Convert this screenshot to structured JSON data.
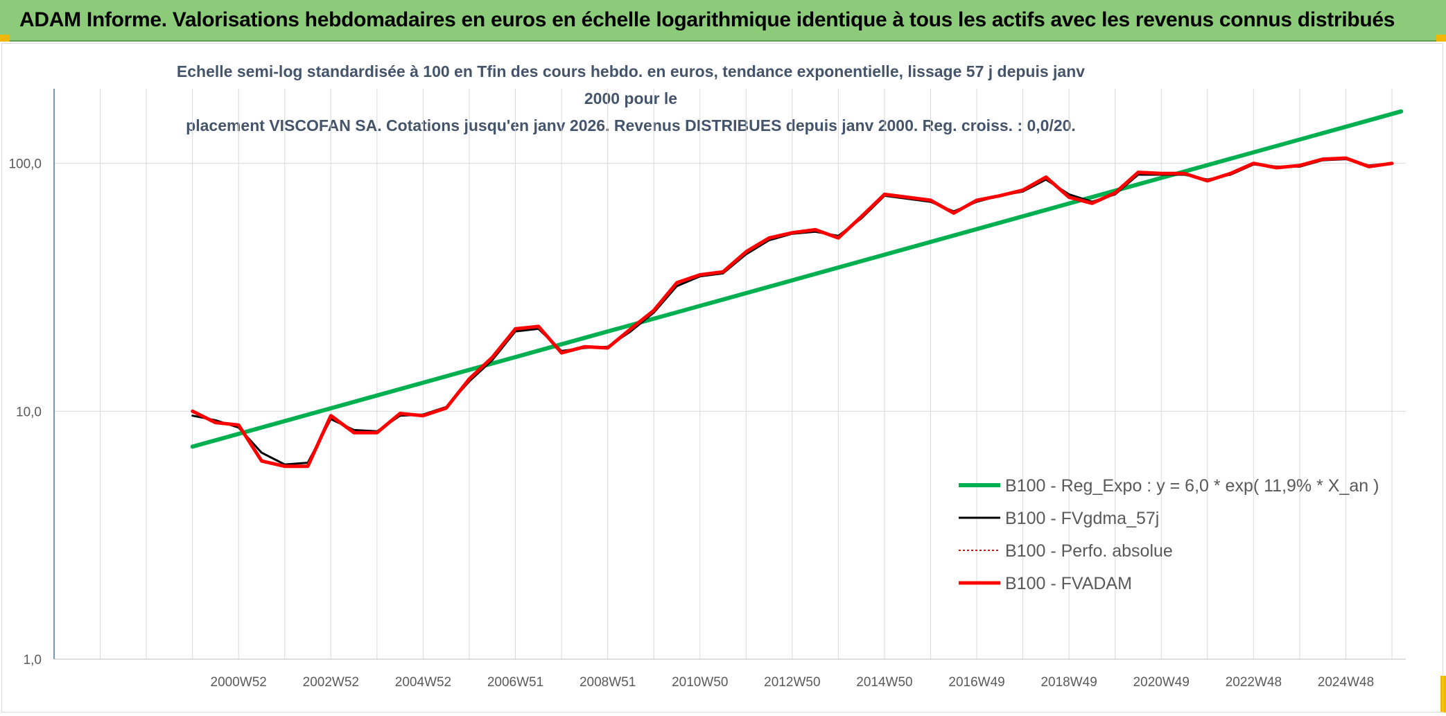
{
  "header": {
    "title": "ADAM Informe. Valorisations hebdomadaires en euros en échelle logarithmique identique à tous les actifs avec les revenus connus distribués",
    "banner_color": "#8ccb7a",
    "corner_color": "#f2b705"
  },
  "chart_data": {
    "type": "line",
    "title_line1": "Echelle semi-log standardisée à 100 en Tfin des cours hebdo. en euros, tendance exponentielle, lissage 57 j depuis janv 2000 pour le",
    "title_line2": "placement VISCOFAN SA. Cotations jusqu'en janv 2026. Revenus DISTRIBUES depuis janv 2000. Reg. croiss. : 0,0/20.",
    "y_scale": "log",
    "ylim": [
      1,
      200
    ],
    "y_ticks": [
      {
        "value": 1,
        "label": "1,0"
      },
      {
        "value": 10,
        "label": "10,0"
      },
      {
        "value": 100,
        "label": "100,0"
      }
    ],
    "x_range": [
      1997.0,
      2026.3
    ],
    "x_ticks": [
      {
        "value": 2001.0,
        "label": "2000W52"
      },
      {
        "value": 2003.0,
        "label": "2002W52"
      },
      {
        "value": 2005.0,
        "label": "2004W52"
      },
      {
        "value": 2007.0,
        "label": "2006W51"
      },
      {
        "value": 2009.0,
        "label": "2008W51"
      },
      {
        "value": 2011.0,
        "label": "2010W50"
      },
      {
        "value": 2013.0,
        "label": "2012W50"
      },
      {
        "value": 2015.0,
        "label": "2014W50"
      },
      {
        "value": 2017.0,
        "label": "2016W49"
      },
      {
        "value": 2019.0,
        "label": "2018W49"
      },
      {
        "value": 2021.0,
        "label": "2020W49"
      },
      {
        "value": 2023.0,
        "label": "2022W48"
      },
      {
        "value": 2025.0,
        "label": "2024W48"
      }
    ],
    "grid_x_values": [
      1997,
      1998,
      1999,
      2000,
      2001,
      2002,
      2003,
      2004,
      2005,
      2006,
      2007,
      2008,
      2009,
      2010,
      2011,
      2012,
      2013,
      2014,
      2015,
      2016,
      2017,
      2018,
      2019,
      2020,
      2021,
      2022,
      2023,
      2024,
      2025,
      2026
    ],
    "grid": true,
    "legend_position": "lower-right",
    "series": [
      {
        "name": "B100 - Reg_Expo : y = 6,0 * exp( 11,9% *  X_an )",
        "color": "#00b050",
        "width": 6,
        "dash": "",
        "x": [
          2000.0,
          2026.2
        ],
        "y": [
          7.2,
          162.0
        ]
      },
      {
        "name": "B100 - FVgdma_57j",
        "color": "#000000",
        "width": 3,
        "dash": "",
        "x": [
          2000.0,
          2000.5,
          2001.0,
          2001.5,
          2002.0,
          2002.5,
          2003.0,
          2003.5,
          2004.0,
          2004.5,
          2005.0,
          2005.5,
          2006.0,
          2006.5,
          2007.0,
          2007.5,
          2008.0,
          2008.5,
          2009.0,
          2009.5,
          2010.0,
          2010.5,
          2011.0,
          2011.5,
          2012.0,
          2012.5,
          2013.0,
          2013.5,
          2014.0,
          2014.5,
          2015.0,
          2015.5,
          2016.0,
          2016.5,
          2017.0,
          2017.5,
          2018.0,
          2018.5,
          2019.0,
          2019.5,
          2020.0,
          2020.5,
          2021.0,
          2021.5,
          2022.0,
          2022.5,
          2023.0,
          2023.5,
          2024.0,
          2024.5,
          2025.0,
          2025.5,
          2026.0
        ],
        "y": [
          9.6,
          9.2,
          8.6,
          6.8,
          6.1,
          6.2,
          9.3,
          8.4,
          8.3,
          9.6,
          9.7,
          10.4,
          13.2,
          16.1,
          21.0,
          21.5,
          17.5,
          18.0,
          18.2,
          21.0,
          25.0,
          32.0,
          35.0,
          36.0,
          43.0,
          49.0,
          52.0,
          53.0,
          51.0,
          60.0,
          74.0,
          72.0,
          70.0,
          64.0,
          70.0,
          74.0,
          77.0,
          86.0,
          75.0,
          70.0,
          75.0,
          90.0,
          90.0,
          90.0,
          86.0,
          90.0,
          99.0,
          97.0,
          97.0,
          103.0,
          104.0,
          98.0,
          100.0
        ]
      },
      {
        "name": "B100 - Perfo. absolue",
        "color": "#ff0000",
        "width": 2,
        "dash": "3,3",
        "x": [
          2000.0,
          2000.5,
          2001.0,
          2001.5,
          2002.0,
          2002.5,
          2003.0,
          2003.5,
          2004.0,
          2004.5,
          2005.0,
          2005.5,
          2006.0,
          2006.5,
          2007.0,
          2007.5,
          2008.0,
          2008.5,
          2009.0,
          2009.5,
          2010.0,
          2010.5,
          2011.0,
          2011.5,
          2012.0,
          2012.5,
          2013.0,
          2013.5,
          2014.0,
          2014.5,
          2015.0,
          2015.5,
          2016.0,
          2016.5,
          2017.0,
          2017.5,
          2018.0,
          2018.5,
          2019.0,
          2019.5,
          2020.0,
          2020.5,
          2021.0,
          2021.5,
          2022.0,
          2022.5,
          2023.0,
          2023.5,
          2024.0,
          2024.5,
          2025.0,
          2025.5,
          2026.0
        ],
        "y": [
          10.0,
          9.0,
          8.8,
          6.3,
          6.0,
          6.0,
          9.6,
          8.2,
          8.2,
          9.8,
          9.6,
          10.3,
          13.5,
          16.5,
          21.5,
          22.0,
          17.2,
          18.2,
          18.0,
          21.5,
          25.5,
          33.0,
          35.5,
          36.5,
          44.0,
          50.0,
          52.5,
          54.0,
          50.0,
          61.0,
          75.0,
          73.0,
          71.0,
          63.0,
          71.0,
          74.0,
          78.0,
          88.0,
          73.0,
          69.0,
          76.0,
          92.0,
          91.0,
          91.0,
          85.0,
          91.0,
          100.0,
          96.0,
          98.0,
          104.0,
          105.0,
          97.0,
          100.0
        ]
      },
      {
        "name": "B100 - FVADAM",
        "color": "#ff0000",
        "width": 5,
        "dash": "",
        "x": [
          2000.0,
          2000.5,
          2001.0,
          2001.5,
          2002.0,
          2002.5,
          2003.0,
          2003.5,
          2004.0,
          2004.5,
          2005.0,
          2005.5,
          2006.0,
          2006.5,
          2007.0,
          2007.5,
          2008.0,
          2008.5,
          2009.0,
          2009.5,
          2010.0,
          2010.5,
          2011.0,
          2011.5,
          2012.0,
          2012.5,
          2013.0,
          2013.5,
          2014.0,
          2014.5,
          2015.0,
          2015.5,
          2016.0,
          2016.5,
          2017.0,
          2017.5,
          2018.0,
          2018.5,
          2019.0,
          2019.5,
          2020.0,
          2020.5,
          2021.0,
          2021.5,
          2022.0,
          2022.5,
          2023.0,
          2023.5,
          2024.0,
          2024.5,
          2025.0,
          2025.5,
          2026.0
        ],
        "y": [
          10.0,
          9.0,
          8.8,
          6.3,
          6.0,
          6.0,
          9.6,
          8.2,
          8.2,
          9.8,
          9.6,
          10.3,
          13.5,
          16.5,
          21.5,
          22.0,
          17.2,
          18.2,
          18.0,
          21.5,
          25.5,
          33.0,
          35.5,
          36.5,
          44.0,
          50.0,
          52.5,
          54.0,
          50.0,
          61.0,
          75.0,
          73.0,
          71.0,
          63.0,
          71.0,
          74.0,
          78.0,
          88.0,
          73.0,
          69.0,
          76.0,
          92.0,
          91.0,
          91.0,
          85.0,
          91.0,
          100.0,
          96.0,
          98.0,
          104.0,
          105.0,
          97.0,
          100.0
        ]
      }
    ]
  }
}
